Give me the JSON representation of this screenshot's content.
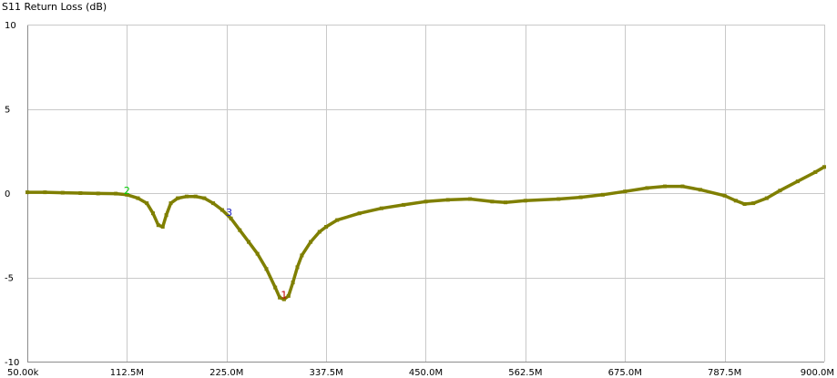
{
  "chart_data": {
    "type": "line",
    "title": "S11 Return Loss (dB)",
    "xlabel": "",
    "ylabel": "",
    "xlim": [
      50000,
      900000000
    ],
    "ylim": [
      -10,
      10
    ],
    "grid": true,
    "x_ticks": [
      {
        "value": 50000,
        "label": "50.00k"
      },
      {
        "value": 112500000,
        "label": "112.5M"
      },
      {
        "value": 225000000,
        "label": "225.0M"
      },
      {
        "value": 337500000,
        "label": "337.5M"
      },
      {
        "value": 450000000,
        "label": "450.0M"
      },
      {
        "value": 562500000,
        "label": "562.5M"
      },
      {
        "value": 675000000,
        "label": "675.0M"
      },
      {
        "value": 787500000,
        "label": "787.5M"
      },
      {
        "value": 900000000,
        "label": "900.0M"
      }
    ],
    "y_ticks": [
      {
        "value": 10,
        "label": "10"
      },
      {
        "value": 5,
        "label": "5"
      },
      {
        "value": 0,
        "label": "0"
      },
      {
        "value": -5,
        "label": "-5"
      },
      {
        "value": -10,
        "label": "-10"
      }
    ],
    "series": [
      {
        "color": "#7f7f00",
        "x": [
          50000,
          20000000,
          40000000,
          60000000,
          80000000,
          100000000,
          112500000,
          125000000,
          135000000,
          142000000,
          148000000,
          153000000,
          157000000,
          162000000,
          170000000,
          180000000,
          190000000,
          200000000,
          210000000,
          220000000,
          230000000,
          240000000,
          250000000,
          260000000,
          270000000,
          280000000,
          285000000,
          290000000,
          295000000,
          300000000,
          305000000,
          310000000,
          320000000,
          330000000,
          337500000,
          350000000,
          375000000,
          400000000,
          425000000,
          450000000,
          475000000,
          500000000,
          525000000,
          540000000,
          562500000,
          600000000,
          625000000,
          650000000,
          675000000,
          700000000,
          720000000,
          740000000,
          760000000,
          787500000,
          800000000,
          810000000,
          820000000,
          835000000,
          850000000,
          870000000,
          890000000,
          900000000
        ],
        "y": [
          0.05,
          0.05,
          0.02,
          0.0,
          -0.02,
          -0.03,
          -0.1,
          -0.3,
          -0.6,
          -1.2,
          -1.9,
          -2.0,
          -1.3,
          -0.6,
          -0.3,
          -0.2,
          -0.2,
          -0.3,
          -0.6,
          -1.0,
          -1.5,
          -2.2,
          -2.9,
          -3.6,
          -4.5,
          -5.6,
          -6.2,
          -6.3,
          -6.1,
          -5.3,
          -4.4,
          -3.7,
          -2.9,
          -2.3,
          -2.0,
          -1.6,
          -1.2,
          -0.9,
          -0.7,
          -0.5,
          -0.4,
          -0.35,
          -0.5,
          -0.55,
          -0.45,
          -0.35,
          -0.25,
          -0.1,
          0.1,
          0.3,
          0.4,
          0.4,
          0.2,
          -0.15,
          -0.45,
          -0.65,
          -0.6,
          -0.3,
          0.15,
          0.7,
          1.25,
          1.55
        ]
      }
    ],
    "markers": [
      {
        "label": "1",
        "x": 290000000,
        "y": -6.3,
        "color": "#c00000"
      },
      {
        "label": "2",
        "x": 112500000,
        "y": -0.1,
        "color": "#00cc00"
      },
      {
        "label": "3",
        "x": 228000000,
        "y": -1.4,
        "color": "#2020c0"
      }
    ]
  }
}
